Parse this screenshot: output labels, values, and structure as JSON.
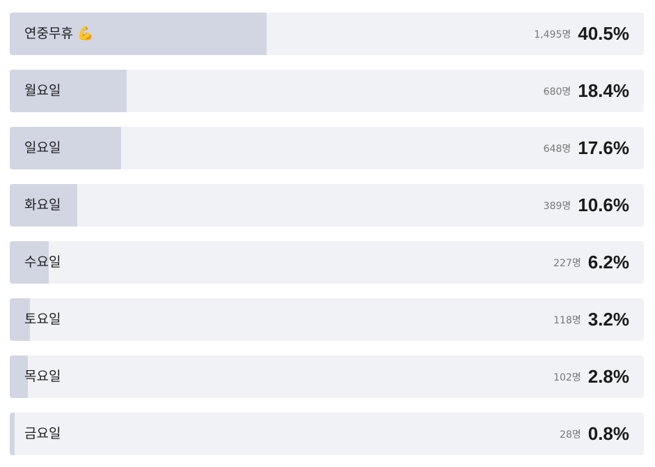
{
  "options": [
    {
      "label": "연중무휴 💪",
      "count": "1,495명",
      "percent": 40.5,
      "percent_label": "40.5%"
    },
    {
      "label": "월요일",
      "count": "680명",
      "percent": 18.4,
      "percent_label": "18.4%"
    },
    {
      "label": "일요일",
      "count": "648명",
      "percent": 17.6,
      "percent_label": "17.6%"
    },
    {
      "label": "화요일",
      "count": "389명",
      "percent": 10.6,
      "percent_label": "10.6%"
    },
    {
      "label": "수요일",
      "count": "227명",
      "percent": 6.2,
      "percent_label": "6.2%"
    },
    {
      "label": "토요일",
      "count": "118명",
      "percent": 3.2,
      "percent_label": "3.2%"
    },
    {
      "label": "목요일",
      "count": "102명",
      "percent": 2.8,
      "percent_label": "2.8%"
    },
    {
      "label": "금요일",
      "count": "28명",
      "percent": 0.8,
      "percent_label": "0.8%"
    }
  ]
}
